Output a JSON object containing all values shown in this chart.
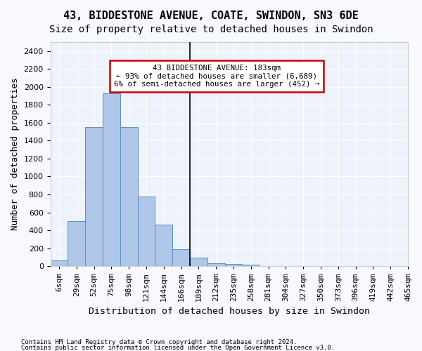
{
  "title1": "43, BIDDESTONE AVENUE, COATE, SWINDON, SN3 6DE",
  "title2": "Size of property relative to detached houses in Swindon",
  "xlabel": "Distribution of detached houses by size in Swindon",
  "ylabel": "Number of detached properties",
  "footer1": "Contains HM Land Registry data © Crown copyright and database right 2024.",
  "footer2": "Contains public sector information licensed under the Open Government Licence v3.0.",
  "bin_labels": [
    "6sqm",
    "29sqm",
    "52sqm",
    "75sqm",
    "98sqm",
    "121sqm",
    "144sqm",
    "166sqm",
    "189sqm",
    "212sqm",
    "235sqm",
    "258sqm",
    "281sqm",
    "304sqm",
    "327sqm",
    "350sqm",
    "373sqm",
    "396sqm",
    "419sqm",
    "442sqm",
    "465sqm"
  ],
  "bar_values": [
    60,
    500,
    1550,
    1930,
    1550,
    780,
    465,
    190,
    95,
    35,
    28,
    20,
    0,
    0,
    0,
    0,
    0,
    0,
    0,
    0
  ],
  "bar_color": "#aec6e8",
  "bar_edge_color": "#5a8fc2",
  "vline_x": 7.5,
  "annotation_title": "43 BIDDESTONE AVENUE: 183sqm",
  "annotation_line1": "← 93% of detached houses are smaller (6,689)",
  "annotation_line2": "6% of semi-detached houses are larger (452) →",
  "annotation_box_color": "#ffffff",
  "annotation_box_edge": "#cc0000",
  "ylim": [
    0,
    2500
  ],
  "yticks": [
    0,
    200,
    400,
    600,
    800,
    1000,
    1200,
    1400,
    1600,
    1800,
    2000,
    2200,
    2400
  ],
  "bg_color": "#eef2fb",
  "grid_color": "#ffffff",
  "title_fontsize": 11,
  "subtitle_fontsize": 10,
  "axis_label_fontsize": 9,
  "tick_fontsize": 8
}
